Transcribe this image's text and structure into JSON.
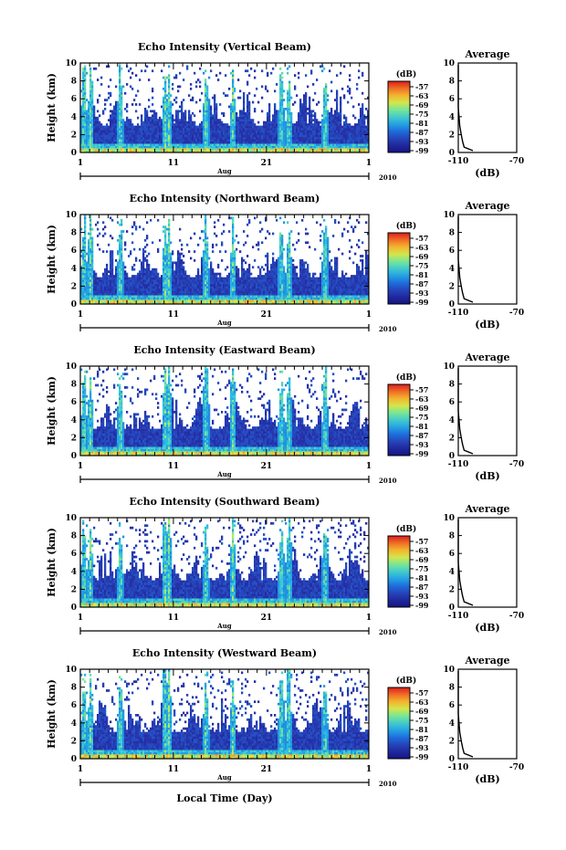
{
  "figure": {
    "x_axis_label": "Local Time (Day)"
  },
  "chart_data": [
    {
      "type": "heatmap",
      "title": "Echo Intensity (Vertical Beam)",
      "ylabel": "Height (km)",
      "ylim": [
        0,
        10
      ],
      "yticks": [
        "0",
        "2",
        "4",
        "6",
        "8",
        "10"
      ],
      "xticks": [
        "1",
        "11",
        "21",
        "1"
      ],
      "month_label": "Aug",
      "year_label": "2010",
      "colorbar": {
        "unit": "(dB)",
        "ticks": [
          "-57",
          "-63",
          "-69",
          "-75",
          "-81",
          "-87",
          "-93",
          "-99"
        ]
      },
      "average": {
        "title": "Average",
        "xlabel": "(dB)",
        "xlim": [
          -110,
          -70
        ],
        "xticks": [
          "-110",
          "-70"
        ],
        "ylim": [
          0,
          10
        ],
        "yticks": [
          "0",
          "2",
          "4",
          "6",
          "8",
          "10"
        ],
        "profile": [
          [
            -100,
            0.2
          ],
          [
            -106,
            0.6
          ],
          [
            -107,
            1.2
          ],
          [
            -108,
            2
          ],
          [
            -109,
            3
          ],
          [
            -109.5,
            4
          ],
          [
            -110,
            5
          ],
          [
            -110,
            6
          ],
          [
            -110,
            7
          ],
          [
            -110,
            8
          ],
          [
            -110,
            9
          ],
          [
            -110,
            9.8
          ]
        ]
      }
    },
    {
      "type": "heatmap",
      "title": "Echo Intensity (Northward Beam)",
      "ylabel": "Height (km)",
      "ylim": [
        0,
        10
      ],
      "yticks": [
        "0",
        "2",
        "4",
        "6",
        "8",
        "10"
      ],
      "xticks": [
        "1",
        "11",
        "21",
        "1"
      ],
      "month_label": "Aug",
      "year_label": "2010",
      "colorbar": {
        "unit": "(dB)",
        "ticks": [
          "-57",
          "-63",
          "-69",
          "-75",
          "-81",
          "-87",
          "-93",
          "-99"
        ]
      },
      "average": {
        "title": "Average",
        "xlabel": "(dB)",
        "xlim": [
          -110,
          -70
        ],
        "xticks": [
          "-110",
          "-70"
        ],
        "ylim": [
          0,
          10
        ],
        "yticks": [
          "0",
          "2",
          "4",
          "6",
          "8",
          "10"
        ],
        "profile": [
          [
            -100,
            0.2
          ],
          [
            -106,
            0.6
          ],
          [
            -107,
            1.2
          ],
          [
            -108,
            2
          ],
          [
            -109,
            3
          ],
          [
            -109.5,
            4
          ],
          [
            -110,
            5
          ],
          [
            -110,
            6
          ],
          [
            -110,
            7
          ],
          [
            -110,
            8
          ],
          [
            -110,
            9
          ],
          [
            -110,
            9.8
          ]
        ]
      }
    },
    {
      "type": "heatmap",
      "title": "Echo Intensity (Eastward Beam)",
      "ylabel": "Height (km)",
      "ylim": [
        0,
        10
      ],
      "yticks": [
        "0",
        "2",
        "4",
        "6",
        "8",
        "10"
      ],
      "xticks": [
        "1",
        "11",
        "21",
        "1"
      ],
      "month_label": "Aug",
      "year_label": "2010",
      "colorbar": {
        "unit": "(dB)",
        "ticks": [
          "-57",
          "-63",
          "-69",
          "-75",
          "-81",
          "-87",
          "-93",
          "-99"
        ]
      },
      "average": {
        "title": "Average",
        "xlabel": "(dB)",
        "xlim": [
          -110,
          -70
        ],
        "xticks": [
          "-110",
          "-70"
        ],
        "ylim": [
          0,
          10
        ],
        "yticks": [
          "0",
          "2",
          "4",
          "6",
          "8",
          "10"
        ],
        "profile": [
          [
            -100,
            0.2
          ],
          [
            -106,
            0.6
          ],
          [
            -107,
            1.2
          ],
          [
            -108,
            2
          ],
          [
            -109,
            3
          ],
          [
            -109.5,
            4
          ],
          [
            -110,
            5
          ],
          [
            -110,
            6
          ],
          [
            -110,
            7
          ],
          [
            -110,
            8
          ],
          [
            -110,
            9
          ],
          [
            -110,
            9.8
          ]
        ]
      }
    },
    {
      "type": "heatmap",
      "title": "Echo Intensity (Southward Beam)",
      "ylabel": "Height (km)",
      "ylim": [
        0,
        10
      ],
      "yticks": [
        "0",
        "2",
        "4",
        "6",
        "8",
        "10"
      ],
      "xticks": [
        "1",
        "11",
        "21",
        "1"
      ],
      "month_label": "Aug",
      "year_label": "2010",
      "colorbar": {
        "unit": "(dB)",
        "ticks": [
          "-57",
          "-63",
          "-69",
          "-75",
          "-81",
          "-87",
          "-93",
          "-99"
        ]
      },
      "average": {
        "title": "Average",
        "xlabel": "(dB)",
        "xlim": [
          -110,
          -70
        ],
        "xticks": [
          "-110",
          "-70"
        ],
        "ylim": [
          0,
          10
        ],
        "yticks": [
          "0",
          "2",
          "4",
          "6",
          "8",
          "10"
        ],
        "profile": [
          [
            -100,
            0.2
          ],
          [
            -106,
            0.6
          ],
          [
            -107,
            1.2
          ],
          [
            -108,
            2
          ],
          [
            -109,
            3
          ],
          [
            -109.5,
            4
          ],
          [
            -110,
            5
          ],
          [
            -110,
            6
          ],
          [
            -110,
            7
          ],
          [
            -110,
            8
          ],
          [
            -110,
            9
          ],
          [
            -110,
            9.8
          ]
        ]
      }
    },
    {
      "type": "heatmap",
      "title": "Echo Intensity (Westward Beam)",
      "ylabel": "Height (km)",
      "ylim": [
        0,
        10
      ],
      "yticks": [
        "0",
        "2",
        "4",
        "6",
        "8",
        "10"
      ],
      "xticks": [
        "1",
        "11",
        "21",
        "1"
      ],
      "month_label": "Aug",
      "year_label": "2010",
      "colorbar": {
        "unit": "(dB)",
        "ticks": [
          "-57",
          "-63",
          "-69",
          "-75",
          "-81",
          "-87",
          "-93",
          "-99"
        ]
      },
      "average": {
        "title": "Average",
        "xlabel": "(dB)",
        "xlim": [
          -110,
          -70
        ],
        "xticks": [
          "-110",
          "-70"
        ],
        "ylim": [
          0,
          10
        ],
        "yticks": [
          "0",
          "2",
          "4",
          "6",
          "8",
          "10"
        ],
        "profile": [
          [
            -100,
            0.2
          ],
          [
            -106,
            0.6
          ],
          [
            -107,
            1.2
          ],
          [
            -108,
            2
          ],
          [
            -109,
            3
          ],
          [
            -109.5,
            4
          ],
          [
            -110,
            5
          ],
          [
            -110,
            6
          ],
          [
            -110,
            7
          ],
          [
            -110,
            8
          ],
          [
            -110,
            9
          ],
          [
            -110,
            9.8
          ]
        ]
      }
    }
  ]
}
